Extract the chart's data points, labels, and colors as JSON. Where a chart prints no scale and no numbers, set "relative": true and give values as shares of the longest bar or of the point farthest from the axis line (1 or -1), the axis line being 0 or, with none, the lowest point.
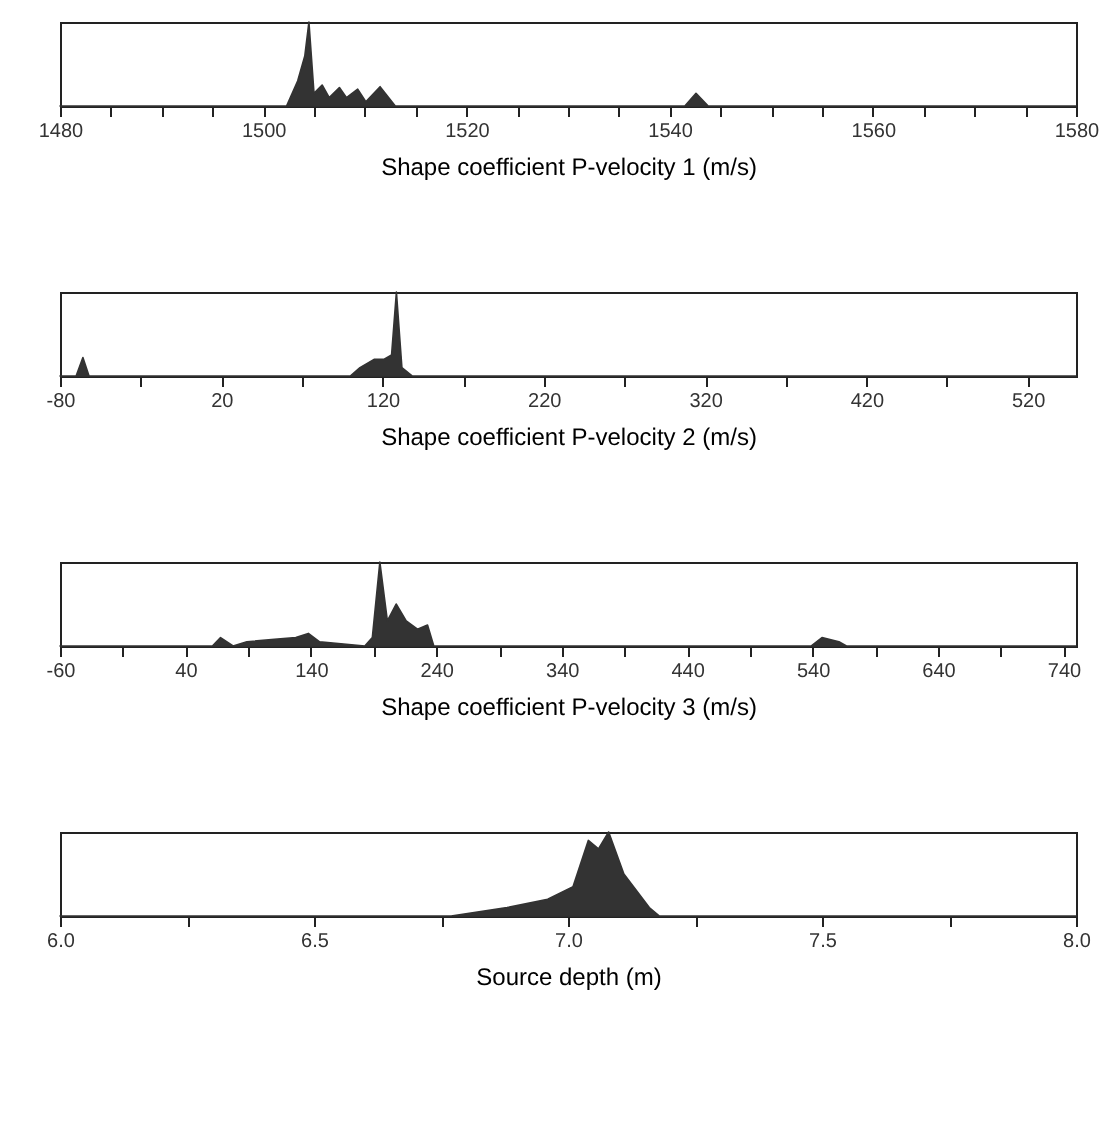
{
  "chart_data": [
    {
      "type": "area",
      "xlabel": "Shape coefficient P-velocity 1 (m/s)",
      "relative": true,
      "color": "#333333",
      "x": [
        1480,
        1502.3,
        1503.4,
        1504.1,
        1504.5,
        1505.0,
        1505.8,
        1506.5,
        1507.5,
        1508.2,
        1509.3,
        1510.1,
        1511.5,
        1513.0,
        1541.5,
        1542.6,
        1543.8,
        1580
      ],
      "values": [
        0,
        0,
        0.3,
        0.6,
        1,
        0.15,
        0.25,
        0.1,
        0.22,
        0.1,
        0.2,
        0.05,
        0.23,
        0,
        0,
        0.15,
        0,
        0
      ],
      "xlim": [
        1480,
        1580
      ],
      "xticks": [
        1480,
        {
          "value": 1485,
          "label": null
        },
        {
          "value": 1490,
          "label": null
        },
        {
          "value": 1495,
          "label": null
        },
        1500,
        {
          "value": 1505,
          "label": null
        },
        {
          "value": 1510,
          "label": null
        },
        {
          "value": 1515,
          "label": null
        },
        1520,
        {
          "value": 1525,
          "label": null
        },
        {
          "value": 1530,
          "label": null
        },
        {
          "value": 1535,
          "label": null
        },
        1540,
        {
          "value": 1545,
          "label": null
        },
        {
          "value": 1550,
          "label": null
        },
        {
          "value": 1555,
          "label": null
        },
        1560,
        {
          "value": 1565,
          "label": null
        },
        {
          "value": 1570,
          "label": null
        },
        {
          "value": 1575,
          "label": null
        },
        1580
      ]
    },
    {
      "type": "area",
      "xlabel": "Shape coefficient P-velocity 2 (m/s)",
      "relative": true,
      "color": "#333333",
      "x": [
        -80,
        -70,
        -65.8,
        -62,
        100,
        106,
        115,
        121,
        125.6,
        128.6,
        132,
        138.5,
        550
      ],
      "values": [
        0,
        0,
        0.22,
        0,
        0,
        0.1,
        0.2,
        0.2,
        0.25,
        1,
        0.1,
        0,
        0
      ],
      "xlim": [
        -80,
        550
      ],
      "xticks": [
        -80,
        {
          "value": -30,
          "label": null
        },
        20,
        {
          "value": 70,
          "label": null
        },
        120,
        {
          "value": 170,
          "label": null
        },
        220,
        {
          "value": 270,
          "label": null
        },
        320,
        {
          "value": 370,
          "label": null
        },
        420,
        {
          "value": 470,
          "label": null
        },
        520
      ]
    },
    {
      "type": "area",
      "xlabel": "Shape coefficient P-velocity 3 (m/s)",
      "relative": true,
      "color": "#333333",
      "x": [
        -60,
        61.5,
        68,
        78,
        89,
        111,
        128,
        138,
        147,
        183,
        189,
        195,
        201,
        208,
        216,
        225,
        233,
        238,
        539,
        547.5,
        561,
        567,
        750
      ],
      "values": [
        0,
        0,
        0.1,
        0,
        0.05,
        0.08,
        0.1,
        0.15,
        0.05,
        0,
        0.1,
        1,
        0.3,
        0.5,
        0.3,
        0.2,
        0.25,
        0,
        0,
        0.1,
        0.05,
        0,
        0
      ],
      "xlim": [
        -60,
        750
      ],
      "xticks": [
        -60,
        {
          "value": -10,
          "label": null
        },
        40,
        {
          "value": 90,
          "label": null
        },
        140,
        {
          "value": 190,
          "label": null
        },
        240,
        {
          "value": 290,
          "label": null
        },
        340,
        {
          "value": 390,
          "label": null
        },
        440,
        {
          "value": 490,
          "label": null
        },
        540,
        {
          "value": 590,
          "label": null
        },
        640,
        {
          "value": 690,
          "label": null
        },
        740
      ]
    },
    {
      "type": "area",
      "xlabel": "Source depth (m)",
      "relative": true,
      "color": "#333333",
      "x": [
        6.0,
        6.77,
        6.88,
        6.96,
        7.01,
        7.04,
        7.06,
        7.08,
        7.11,
        7.16,
        7.18,
        8.0
      ],
      "values": [
        0,
        0,
        0.1,
        0.2,
        0.35,
        0.9,
        0.8,
        1,
        0.5,
        0.1,
        0,
        0
      ],
      "xlim": [
        6.0,
        8.0
      ],
      "xticks": [
        {
          "value": 6,
          "label": "6.0"
        },
        {
          "value": 6.25,
          "label": null
        },
        6.5,
        {
          "value": 6.75,
          "label": null
        },
        {
          "value": 7,
          "label": "7.0"
        },
        {
          "value": 7.25,
          "label": null
        },
        7.5,
        {
          "value": 7.75,
          "label": null
        },
        {
          "value": 8,
          "label": "8.0"
        }
      ]
    }
  ]
}
